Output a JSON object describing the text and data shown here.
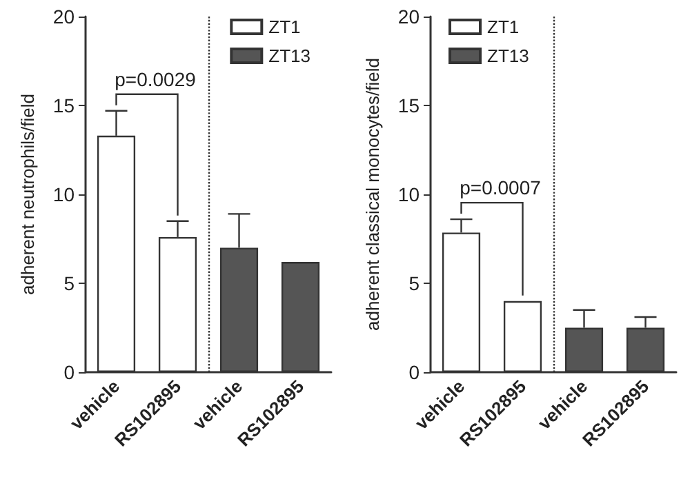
{
  "chart_data": [
    {
      "type": "bar",
      "ylabel": "adherent neutrophils/field",
      "categories": [
        "vehicle",
        "RS102895",
        "vehicle",
        "RS102895"
      ],
      "ylim": [
        0,
        20
      ],
      "yticks": [
        0,
        5,
        10,
        15,
        20
      ],
      "legend": "top right",
      "grid": false,
      "annotations": [
        "p=0.0029"
      ],
      "series": [
        {
          "name": "ZT1",
          "color": "#ffffff",
          "values": [
            13.3,
            7.6,
            null,
            null
          ],
          "errors": [
            [
              13.3,
              14.7
            ],
            [
              7.6,
              8.5
            ],
            null,
            null
          ]
        },
        {
          "name": "ZT13",
          "color": "#555555",
          "values": [
            null,
            null,
            7.0,
            6.2
          ],
          "errors": [
            null,
            null,
            [
              7.0,
              8.9
            ],
            null
          ]
        }
      ]
    },
    {
      "type": "bar",
      "ylabel": "adherent classical monocytes/field",
      "categories": [
        "vehicle",
        "RS102895",
        "vehicle",
        "RS102895"
      ],
      "ylim": [
        0,
        20
      ],
      "yticks": [
        0,
        5,
        10,
        15,
        20
      ],
      "legend": "top left",
      "grid": false,
      "annotations": [
        "p=0.0007"
      ],
      "series": [
        {
          "name": "ZT1",
          "color": "#ffffff",
          "values": [
            7.85,
            4.0,
            null,
            null
          ],
          "errors": [
            [
              7.85,
              8.6
            ],
            null,
            null,
            null
          ]
        },
        {
          "name": "ZT13",
          "color": "#555555",
          "values": [
            null,
            null,
            2.5,
            2.5
          ],
          "errors": [
            null,
            null,
            [
              2.5,
              3.5
            ],
            [
              2.5,
              3.1
            ]
          ]
        }
      ]
    }
  ]
}
